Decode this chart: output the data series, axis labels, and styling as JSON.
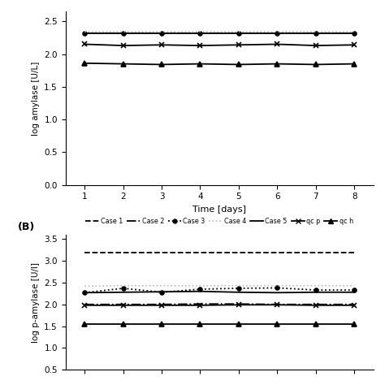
{
  "days": [
    1,
    2,
    3,
    4,
    5,
    6,
    7,
    8
  ],
  "panel_A": {
    "ylabel": "log amylase [U/L]",
    "ylim": [
      0,
      2.65
    ],
    "yticks": [
      0,
      0.5,
      1,
      1.5,
      2,
      2.5
    ],
    "case1": [
      2.32,
      2.32,
      2.32,
      2.32,
      2.32,
      2.32,
      2.32,
      2.32
    ],
    "case2": [
      2.32,
      2.32,
      2.32,
      2.32,
      2.32,
      2.32,
      2.32,
      2.32
    ],
    "case3": [
      2.32,
      2.32,
      2.32,
      2.32,
      2.32,
      2.32,
      2.32,
      2.32
    ],
    "case4": [
      2.34,
      2.34,
      2.34,
      2.34,
      2.34,
      2.34,
      2.34,
      2.34
    ],
    "case5": [
      2.32,
      2.32,
      2.32,
      2.32,
      2.32,
      2.32,
      2.32,
      2.32
    ],
    "qcp": [
      2.15,
      2.13,
      2.14,
      2.13,
      2.14,
      2.15,
      2.13,
      2.14
    ],
    "qch": [
      1.86,
      1.85,
      1.84,
      1.85,
      1.84,
      1.85,
      1.84,
      1.85
    ]
  },
  "panel_B": {
    "ylabel": "log p-amylase [U/l]",
    "ylim": [
      0.5,
      3.6
    ],
    "yticks": [
      0.5,
      1,
      1.5,
      2,
      2.5,
      3,
      3.5
    ],
    "case1": [
      3.2,
      3.2,
      3.2,
      3.2,
      3.2,
      3.2,
      3.2,
      3.2
    ],
    "case2": [
      2.0,
      2.0,
      2.0,
      2.01,
      2.01,
      2.0,
      2.0,
      2.0
    ],
    "case3": [
      2.27,
      2.37,
      2.28,
      2.35,
      2.37,
      2.38,
      2.33,
      2.33
    ],
    "case4": [
      2.42,
      2.43,
      2.43,
      2.43,
      2.43,
      2.43,
      2.43,
      2.43
    ],
    "case5": [
      2.27,
      2.28,
      2.29,
      2.3,
      2.28,
      2.27,
      2.28,
      2.28
    ],
    "qcp": [
      1.98,
      1.98,
      1.98,
      1.98,
      1.99,
      1.99,
      1.98,
      1.98
    ],
    "qch": [
      1.55,
      1.55,
      1.55,
      1.55,
      1.55,
      1.55,
      1.55,
      1.55
    ]
  },
  "color": "black",
  "gray": "#bbbbbb",
  "xlabel": "Time [days]"
}
